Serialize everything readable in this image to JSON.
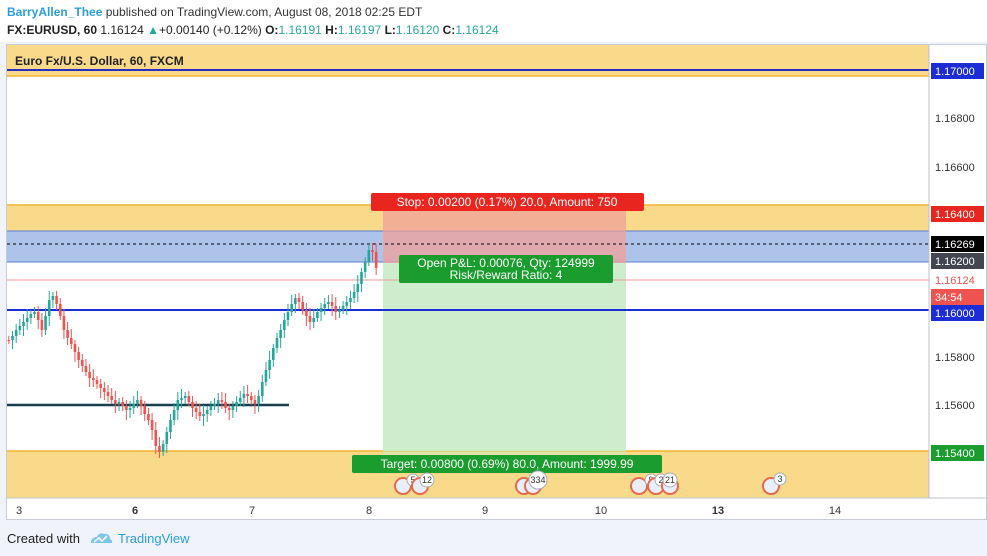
{
  "header": {
    "user": "BarryAllen_Thee",
    "published_text": " published on TradingView.com, August 08, 2018 02:25 EDT",
    "symbol": "FX:EURUSD, 60",
    "last": "1.16124",
    "change": "+0.00140 (+0.12%)",
    "o_label": "O:",
    "o_value": "1.16191",
    "h_label": "H:",
    "h_value": "1.16197",
    "l_label": "L:",
    "l_value": "1.16120",
    "c_label": "C:",
    "c_value": "1.16124"
  },
  "chart_title": "Euro Fx/U.S. Dollar, 60, FXCM",
  "price_axis": {
    "ticks": [
      "1.16800",
      "1.16600",
      "1.15800",
      "1.15600"
    ],
    "labels": [
      {
        "text": "1.17000",
        "bg": "#1c2dd6",
        "fg": "#ffffff"
      },
      {
        "text": "1.16400",
        "bg": "#e8251f",
        "fg": "#ffffff"
      },
      {
        "text": "1.16269",
        "bg": "#000000",
        "fg": "#ffffff"
      },
      {
        "text": "1.16200",
        "bg": "#434651",
        "fg": "#ffffff"
      },
      {
        "text": "1.16124",
        "bg": "#ffffff",
        "fg": "#ef5350"
      },
      {
        "text": "34:54",
        "bg": "#ef5350",
        "fg": "#ffffff"
      },
      {
        "text": "1.16000",
        "bg": "#1c2dd6",
        "fg": "#ffffff"
      },
      {
        "text": "1.15400",
        "bg": "#1a9c2e",
        "fg": "#ffffff"
      }
    ]
  },
  "time_axis": [
    "3",
    "6",
    "7",
    "8",
    "9",
    "10",
    "13",
    "14"
  ],
  "position": {
    "stop_label": "Stop: 0.00200 (0.17%) 20.0, Amount: 750",
    "pnl_line1": "Open P&L: 0.00076, Qty: 124999",
    "pnl_line2": "Risk/Reward Ratio: 4",
    "target_label": "Target: 0.00800 (0.69%) 80.0, Amount: 1999.99"
  },
  "events": [
    "5",
    "12",
    "334",
    "9",
    "2",
    "21",
    "3"
  ],
  "footer": {
    "created": "Created with",
    "brand": "TradingView"
  },
  "colors": {
    "up": "#26a69a",
    "down": "#ef5350",
    "zone": "#f9d98a"
  }
}
